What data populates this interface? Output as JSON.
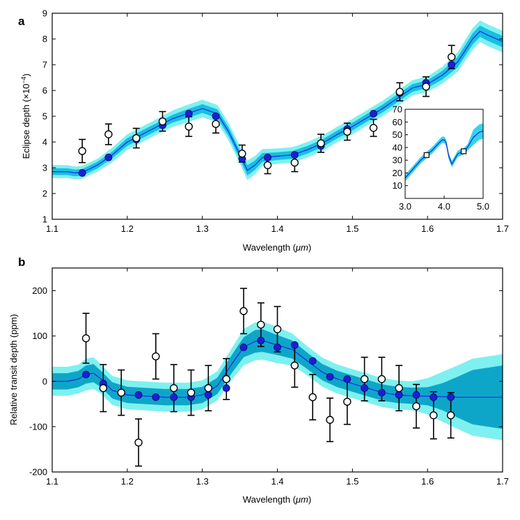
{
  "figure": {
    "panels": [
      "a",
      "b"
    ],
    "inset_label": "inset"
  },
  "chart_data": [
    {
      "panel": "a",
      "type": "line",
      "ylabel_main": "Eclipse depth (×10",
      "ylabel_exp": "−4",
      "ylabel_close": ")",
      "xlabel": "Wavelength (",
      "xlabel_unit": "μm",
      "xlabel_close": ")",
      "xlim": [
        1.1,
        1.7
      ],
      "ylim": [
        1,
        9
      ],
      "xticks": [
        1.1,
        1.2,
        1.3,
        1.4,
        1.5,
        1.6,
        1.7
      ],
      "xtick_labels": [
        "1.1",
        "1.2",
        "1.3",
        "1.4",
        "1.5",
        "1.6",
        "1.7"
      ],
      "yticks": [
        1,
        2,
        3,
        4,
        5,
        6,
        7,
        8,
        9
      ],
      "ytick_labels": [
        "1",
        "2",
        "3",
        "4",
        "5",
        "6",
        "7",
        "8",
        "9"
      ],
      "model": {
        "x": [
          1.1,
          1.12,
          1.13,
          1.14,
          1.16,
          1.18,
          1.2,
          1.22,
          1.24,
          1.26,
          1.28,
          1.3,
          1.32,
          1.335,
          1.35,
          1.36,
          1.37,
          1.38,
          1.4,
          1.42,
          1.44,
          1.46,
          1.48,
          1.5,
          1.52,
          1.54,
          1.56,
          1.58,
          1.6,
          1.62,
          1.64,
          1.66,
          1.67,
          1.68,
          1.7
        ],
        "y": [
          2.85,
          2.85,
          2.8,
          2.82,
          3.1,
          3.5,
          4.0,
          4.3,
          4.6,
          4.9,
          5.1,
          5.3,
          5.1,
          4.4,
          3.5,
          2.9,
          3.1,
          3.4,
          3.45,
          3.5,
          3.7,
          3.95,
          4.3,
          4.6,
          4.95,
          5.3,
          5.7,
          6.1,
          6.25,
          6.6,
          7.1,
          8.0,
          8.3,
          8.15,
          7.9
        ],
        "band1": [
          0.13,
          0.13,
          0.13,
          0.13,
          0.13,
          0.13,
          0.15,
          0.15,
          0.15,
          0.15,
          0.17,
          0.17,
          0.17,
          0.17,
          0.17,
          0.2,
          0.18,
          0.17,
          0.15,
          0.15,
          0.15,
          0.15,
          0.15,
          0.15,
          0.15,
          0.15,
          0.15,
          0.15,
          0.15,
          0.17,
          0.2,
          0.22,
          0.22,
          0.22,
          0.22
        ],
        "band2": [
          0.25,
          0.25,
          0.25,
          0.25,
          0.25,
          0.28,
          0.3,
          0.3,
          0.3,
          0.32,
          0.34,
          0.34,
          0.34,
          0.34,
          0.34,
          0.38,
          0.35,
          0.33,
          0.3,
          0.3,
          0.3,
          0.3,
          0.3,
          0.3,
          0.3,
          0.3,
          0.3,
          0.3,
          0.3,
          0.33,
          0.38,
          0.42,
          0.42,
          0.42,
          0.42
        ]
      },
      "model_binned": {
        "x": [
          1.14,
          1.175,
          1.212,
          1.247,
          1.282,
          1.318,
          1.353,
          1.387,
          1.423,
          1.458,
          1.493,
          1.528,
          1.563,
          1.598,
          1.632
        ],
        "y": [
          2.8,
          3.4,
          4.1,
          4.65,
          5.1,
          5.0,
          3.35,
          3.4,
          3.5,
          3.85,
          4.5,
          5.1,
          5.9,
          6.3,
          7.0
        ]
      },
      "observed": {
        "x": [
          1.14,
          1.175,
          1.212,
          1.247,
          1.282,
          1.318,
          1.353,
          1.387,
          1.423,
          1.458,
          1.493,
          1.528,
          1.563,
          1.598,
          1.632
        ],
        "y": [
          3.65,
          4.3,
          4.15,
          4.8,
          4.6,
          4.7,
          3.55,
          3.1,
          3.2,
          3.95,
          4.4,
          4.55,
          5.95,
          6.15,
          7.3
        ],
        "err": [
          0.45,
          0.4,
          0.38,
          0.38,
          0.38,
          0.35,
          0.33,
          0.33,
          0.35,
          0.35,
          0.33,
          0.33,
          0.35,
          0.38,
          0.45
        ]
      },
      "inset": {
        "xlim": [
          3.0,
          5.0
        ],
        "ylim": [
          0,
          70
        ],
        "xticks": [
          3.0,
          4.0,
          5.0
        ],
        "xtick_labels": [
          "3.0",
          "4.0",
          "5.0"
        ],
        "yticks": [
          10,
          20,
          30,
          40,
          50,
          60,
          70
        ],
        "ytick_labels": [
          "10",
          "20",
          "30",
          "40",
          "50",
          "60",
          "70"
        ],
        "model": {
          "x": [
            3.0,
            3.2,
            3.4,
            3.55,
            3.7,
            3.85,
            3.95,
            4.0,
            4.05,
            4.12,
            4.2,
            4.35,
            4.5,
            4.6,
            4.75,
            4.9,
            5.0
          ],
          "y": [
            16,
            23,
            30,
            34,
            38,
            43,
            46,
            46,
            44,
            33,
            27,
            35,
            37,
            40,
            48,
            52,
            53
          ]
        },
        "observed": {
          "x": [
            3.55,
            4.5
          ],
          "y": [
            34,
            37
          ]
        }
      }
    },
    {
      "panel": "b",
      "type": "line",
      "ylabel": "Relative transit depth (ppm)",
      "xlabel": "Wavelength (",
      "xlabel_unit": "μm",
      "xlabel_close": ")",
      "xlim": [
        1.1,
        1.7
      ],
      "ylim": [
        -200,
        250
      ],
      "xticks": [
        1.1,
        1.2,
        1.3,
        1.4,
        1.5,
        1.6,
        1.7
      ],
      "xtick_labels": [
        "1.1",
        "1.2",
        "1.3",
        "1.4",
        "1.5",
        "1.6",
        "1.7"
      ],
      "yticks": [
        -200,
        -100,
        0,
        100,
        200
      ],
      "ytick_labels": [
        "-200",
        "-100",
        "0",
        "100",
        "200"
      ],
      "model": {
        "x": [
          1.1,
          1.12,
          1.135,
          1.145,
          1.155,
          1.165,
          1.18,
          1.2,
          1.22,
          1.25,
          1.28,
          1.3,
          1.32,
          1.34,
          1.355,
          1.37,
          1.38,
          1.4,
          1.42,
          1.44,
          1.46,
          1.48,
          1.5,
          1.52,
          1.54,
          1.56,
          1.58,
          1.6,
          1.62,
          1.64,
          1.66,
          1.7
        ],
        "y": [
          0,
          0,
          5,
          15,
          18,
          5,
          -20,
          -30,
          -32,
          -35,
          -35,
          -30,
          -10,
          40,
          75,
          88,
          90,
          80,
          70,
          45,
          20,
          5,
          -5,
          -15,
          -25,
          -30,
          -32,
          -33,
          -34,
          -35,
          -35,
          -35
        ],
        "band1": [
          18,
          18,
          18,
          20,
          20,
          18,
          18,
          18,
          18,
          18,
          18,
          18,
          18,
          20,
          22,
          25,
          25,
          22,
          20,
          18,
          18,
          18,
          18,
          18,
          18,
          18,
          18,
          20,
          30,
          45,
          60,
          70
        ],
        "band2": [
          32,
          32,
          32,
          35,
          35,
          32,
          32,
          32,
          32,
          32,
          32,
          32,
          32,
          35,
          40,
          42,
          42,
          40,
          35,
          32,
          32,
          32,
          32,
          32,
          32,
          32,
          32,
          40,
          55,
          70,
          85,
          95
        ]
      },
      "model_binned": {
        "x": [
          1.145,
          1.168,
          1.192,
          1.215,
          1.238,
          1.262,
          1.285,
          1.308,
          1.332,
          1.355,
          1.378,
          1.4,
          1.423,
          1.447,
          1.47,
          1.493,
          1.516,
          1.539,
          1.562,
          1.585,
          1.608,
          1.631
        ],
        "y": [
          15,
          -5,
          -25,
          -30,
          -35,
          -35,
          -35,
          -30,
          -15,
          75,
          90,
          75,
          80,
          45,
          10,
          5,
          -15,
          -25,
          -30,
          -30,
          -35,
          -35
        ]
      },
      "observed": {
        "x": [
          1.145,
          1.168,
          1.192,
          1.215,
          1.238,
          1.262,
          1.285,
          1.308,
          1.332,
          1.355,
          1.378,
          1.4,
          1.423,
          1.447,
          1.47,
          1.493,
          1.516,
          1.539,
          1.562,
          1.585,
          1.608,
          1.631
        ],
        "y": [
          95,
          -15,
          -25,
          -135,
          55,
          -15,
          -25,
          -15,
          5,
          155,
          125,
          115,
          35,
          -35,
          -85,
          -45,
          5,
          5,
          -15,
          -55,
          -75,
          -75
        ],
        "err": [
          55,
          52,
          50,
          52,
          50,
          52,
          50,
          50,
          45,
          50,
          48,
          50,
          48,
          50,
          48,
          50,
          48,
          48,
          50,
          48,
          52,
          50
        ]
      }
    }
  ]
}
